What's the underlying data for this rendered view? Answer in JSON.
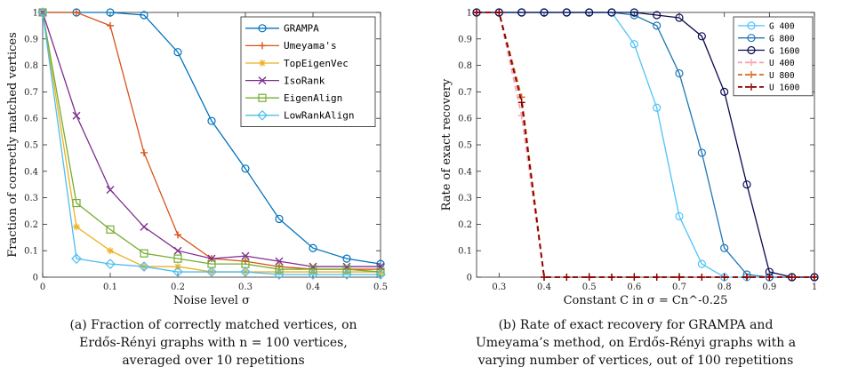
{
  "chart_data": [
    {
      "type": "line",
      "xlabel": "Noise level σ",
      "ylabel": "Fraction of correctly matched vertices",
      "xlim": [
        0,
        0.5
      ],
      "ylim": [
        0,
        1
      ],
      "xticks": [
        "0",
        "0.1",
        "0.2",
        "0.3",
        "0.4",
        "0.5"
      ],
      "yticks": [
        "0",
        "0.1",
        "0.2",
        "0.3",
        "0.4",
        "0.5",
        "0.6",
        "0.7",
        "0.8",
        "0.9",
        "1"
      ],
      "grid": false,
      "legend_position": "top-right",
      "x": [
        0,
        0.05,
        0.1,
        0.15,
        0.2,
        0.25,
        0.3,
        0.35,
        0.4,
        0.45,
        0.5
      ],
      "series": [
        {
          "name": "GRAMPA",
          "color": "#0072BD",
          "marker": "circle",
          "values": [
            1,
            1,
            1,
            0.99,
            0.85,
            0.59,
            0.41,
            0.22,
            0.11,
            0.07,
            0.05
          ]
        },
        {
          "name": "Umeyama's",
          "color": "#D95319",
          "marker": "plus",
          "values": [
            1,
            1,
            0.95,
            0.47,
            0.16,
            0.07,
            0.06,
            0.04,
            0.03,
            0.03,
            0.03
          ]
        },
        {
          "name": "TopEigenVec",
          "color": "#EDB120",
          "marker": "star",
          "values": [
            1,
            0.19,
            0.1,
            0.04,
            0.04,
            0.02,
            0.02,
            0.02,
            0.02,
            0.02,
            0.02
          ]
        },
        {
          "name": "IsoRank",
          "color": "#7E2F8E",
          "marker": "x",
          "values": [
            1,
            0.61,
            0.33,
            0.19,
            0.1,
            0.07,
            0.08,
            0.06,
            0.04,
            0.04,
            0.04
          ]
        },
        {
          "name": "EigenAlign",
          "color": "#77AC30",
          "marker": "square",
          "values": [
            1,
            0.28,
            0.18,
            0.09,
            0.07,
            0.05,
            0.05,
            0.03,
            0.03,
            0.03,
            0.02
          ]
        },
        {
          "name": "LowRankAlign",
          "color": "#4DBEEE",
          "marker": "diamond",
          "values": [
            1,
            0.07,
            0.05,
            0.04,
            0.02,
            0.02,
            0.02,
            0.01,
            0.01,
            0.01,
            0.01
          ]
        }
      ]
    },
    {
      "type": "line",
      "xlabel": "Constant C in σ = Cn^-0.25",
      "ylabel": "Rate of exact recovery",
      "xlim": [
        0.25,
        1
      ],
      "ylim": [
        0,
        1
      ],
      "xticks": [
        "0.3",
        "0.4",
        "0.5",
        "0.6",
        "0.7",
        "0.8",
        "0.9",
        "1"
      ],
      "yticks": [
        "0",
        "0.1",
        "0.2",
        "0.3",
        "0.4",
        "0.5",
        "0.6",
        "0.7",
        "0.8",
        "0.9",
        "1"
      ],
      "grid": false,
      "legend_position": "top-right",
      "series": [
        {
          "name": "G 400",
          "color": "#4FC3F7",
          "marker": "circle",
          "dash": false,
          "x": [
            0.25,
            0.3,
            0.35,
            0.4,
            0.45,
            0.5,
            0.55,
            0.6,
            0.65,
            0.7,
            0.75,
            0.8,
            0.85,
            0.9,
            0.95,
            1
          ],
          "values": [
            1,
            1,
            1,
            1,
            1,
            1,
            1,
            0.88,
            0.64,
            0.23,
            0.05,
            0,
            0,
            0,
            0,
            0
          ]
        },
        {
          "name": "G 800",
          "color": "#1F77B4",
          "marker": "circle",
          "dash": false,
          "x": [
            0.25,
            0.3,
            0.35,
            0.4,
            0.45,
            0.5,
            0.55,
            0.6,
            0.65,
            0.7,
            0.75,
            0.8,
            0.85,
            0.9,
            0.95,
            1
          ],
          "values": [
            1,
            1,
            1,
            1,
            1,
            1,
            1,
            0.99,
            0.95,
            0.77,
            0.47,
            0.11,
            0.01,
            0,
            0,
            0
          ]
        },
        {
          "name": "G 1600",
          "color": "#0A0A50",
          "marker": "circle",
          "dash": false,
          "x": [
            0.25,
            0.3,
            0.35,
            0.4,
            0.45,
            0.5,
            0.55,
            0.6,
            0.65,
            0.7,
            0.75,
            0.8,
            0.85,
            0.9,
            0.95,
            1
          ],
          "values": [
            1,
            1,
            1,
            1,
            1,
            1,
            1,
            1,
            0.99,
            0.98,
            0.91,
            0.7,
            0.35,
            0.02,
            0,
            0
          ]
        },
        {
          "name": "U 400",
          "color": "#F4A6B0",
          "marker": "plus",
          "dash": true,
          "x": [
            0.25,
            0.3,
            0.35,
            0.4,
            0.45,
            0.5,
            0.55,
            0.6,
            0.65,
            0.7,
            0.75,
            0.8,
            0.85,
            0.9,
            0.95,
            1
          ],
          "values": [
            1,
            1,
            0.61,
            0,
            0,
            0,
            0,
            0,
            0,
            0,
            0,
            0,
            0,
            0,
            0,
            0
          ]
        },
        {
          "name": "U 800",
          "color": "#D2691E",
          "marker": "plus",
          "dash": true,
          "x": [
            0.25,
            0.3,
            0.35,
            0.4,
            0.45,
            0.5,
            0.55,
            0.6,
            0.65,
            0.7,
            0.75,
            0.8,
            0.85,
            0.9,
            0.95,
            1
          ],
          "values": [
            1,
            1,
            0.68,
            0,
            0,
            0,
            0,
            0,
            0,
            0,
            0,
            0,
            0,
            0,
            0,
            0
          ]
        },
        {
          "name": "U 1600",
          "color": "#8B0000",
          "marker": "plus",
          "dash": true,
          "x": [
            0.25,
            0.3,
            0.35,
            0.4,
            0.45,
            0.5,
            0.55,
            0.6,
            0.65,
            0.7,
            0.75,
            0.8,
            0.85,
            0.9,
            0.95,
            1
          ],
          "values": [
            1,
            1,
            0.66,
            0,
            0,
            0,
            0,
            0,
            0,
            0,
            0,
            0,
            0,
            0,
            0,
            0
          ]
        }
      ]
    }
  ],
  "captions": {
    "left": [
      "(a) Fraction of correctly matched vertices, on",
      "Erdős-Rényi graphs with n = 100 vertices,",
      "averaged over 10 repetitions"
    ],
    "right": [
      "(b) Rate of exact recovery for GRAMPA and",
      "Umeyama’s method, on Erdős-Rényi graphs with a",
      "varying number of vertices, out of 100 repetitions"
    ]
  }
}
